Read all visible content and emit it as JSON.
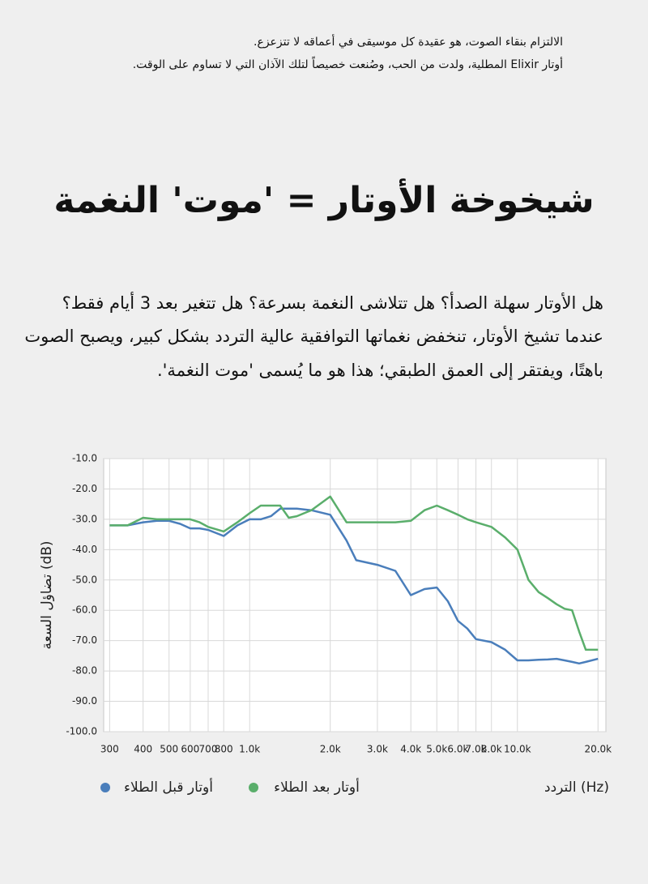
{
  "header": {
    "lines": [
      "الالتزام بنقاء الصوت، هو عقيدة كل موسيقى في أعماقه لا تتزعزع.",
      "أوتار Elixir المطلية، ولدت من الحب، وصُنعت خصيصاً لتلك الآذان التي لا تساوم على الوقت."
    ]
  },
  "title": "شيخوخة الأوتار = 'موت' النغمة",
  "paragraph": [
    "هل الأوتار سهلة الصدأ؟ هل تتلاشى النغمة بسرعة؟ هل تتغير بعد 3 أيام فقط؟",
    "عندما تشيخ الأوتار، تنخفض نغماتها التوافقية عالية التردد بشكل كبير، ويصبح الصوت",
    "باهتًا، ويفتقر إلى العمق الطبقي؛ هذا هو ما يُسمى 'موت النغمة'."
  ],
  "chart_data": {
    "type": "line",
    "x_label": "التردد (Hz)",
    "y_label": "تضاؤل السعة (dB)",
    "x_scale": "log",
    "grid": true,
    "x": [
      300,
      350,
      400,
      450,
      500,
      550,
      600,
      650,
      700,
      800,
      900,
      1000,
      1100,
      1200,
      1300,
      1400,
      1500,
      1700,
      2000,
      2300,
      2500,
      3000,
      3500,
      4000,
      4500,
      5000,
      5500,
      6000,
      6500,
      7000,
      8000,
      9000,
      10000,
      11000,
      12000,
      13000,
      14000,
      15000,
      16000,
      17000,
      18000,
      20000
    ],
    "series": [
      {
        "name": "أوتار قبل الطلاء",
        "color": "#4a7ebb",
        "values": [
          -32,
          -32,
          -31,
          -30.5,
          -30.5,
          -31.5,
          -33,
          -33,
          -33.5,
          -35.5,
          -32,
          -30,
          -30,
          -29,
          -26.5,
          -26.5,
          -26.5,
          -27,
          -28.5,
          -37,
          -43.5,
          -45,
          -47,
          -55,
          -53,
          -52.5,
          -57,
          -63.5,
          -66,
          -69.5,
          -70.5,
          -73,
          -76.5,
          -76.5,
          -76.3,
          -76.2,
          -76,
          -76.5,
          -77,
          -77.5,
          -77,
          -76
        ]
      },
      {
        "name": "أوتار بعد الطلاء",
        "color": "#5aae6b",
        "values": [
          -32,
          -32,
          -29.5,
          -30,
          -30,
          -30,
          -30,
          -31,
          -32.5,
          -34,
          -31,
          -28,
          -25.5,
          -25.5,
          -25.5,
          -29.5,
          -29,
          -27,
          -22.5,
          -31,
          -31,
          -31,
          -31,
          -30.5,
          -27,
          -25.5,
          -27,
          -28.5,
          -30,
          -31,
          -32.5,
          -36,
          -40,
          -50,
          -54,
          -56,
          -58,
          -59.5,
          -60,
          -67,
          -73,
          -73
        ]
      }
    ],
    "xlim": [
      285,
      21400
    ],
    "ylim": [
      -100,
      -10
    ],
    "xticks": [
      300,
      400,
      500,
      600,
      700,
      800,
      {
        "value": 1000,
        "label": "1.0k"
      },
      {
        "value": 2000,
        "label": "2.0k"
      },
      {
        "value": 3000,
        "label": "3.0k"
      },
      {
        "value": 4000,
        "label": "4.0k"
      },
      {
        "value": 5000,
        "label": "5.0k"
      },
      {
        "value": 6000,
        "label": "6.0k"
      },
      {
        "value": 7000,
        "label": "7.0k"
      },
      {
        "value": 8000,
        "label": "8.0k"
      },
      {
        "value": 10000,
        "label": "10.0k"
      },
      {
        "value": 20000,
        "label": "20.0k"
      }
    ],
    "yticks": [
      {
        "value": -10,
        "label": "-10.0"
      },
      {
        "value": -20,
        "label": "-20.0"
      },
      {
        "value": -30,
        "label": "-30.0"
      },
      {
        "value": -40,
        "label": "-40.0"
      },
      {
        "value": -50,
        "label": "-50.0"
      },
      {
        "value": -60,
        "label": "-60.0"
      },
      {
        "value": -70,
        "label": "-70.0"
      },
      {
        "value": -80,
        "label": "-80.0"
      },
      {
        "value": -90,
        "label": "-90.0"
      },
      {
        "value": -100,
        "label": "-100.0"
      }
    ]
  }
}
